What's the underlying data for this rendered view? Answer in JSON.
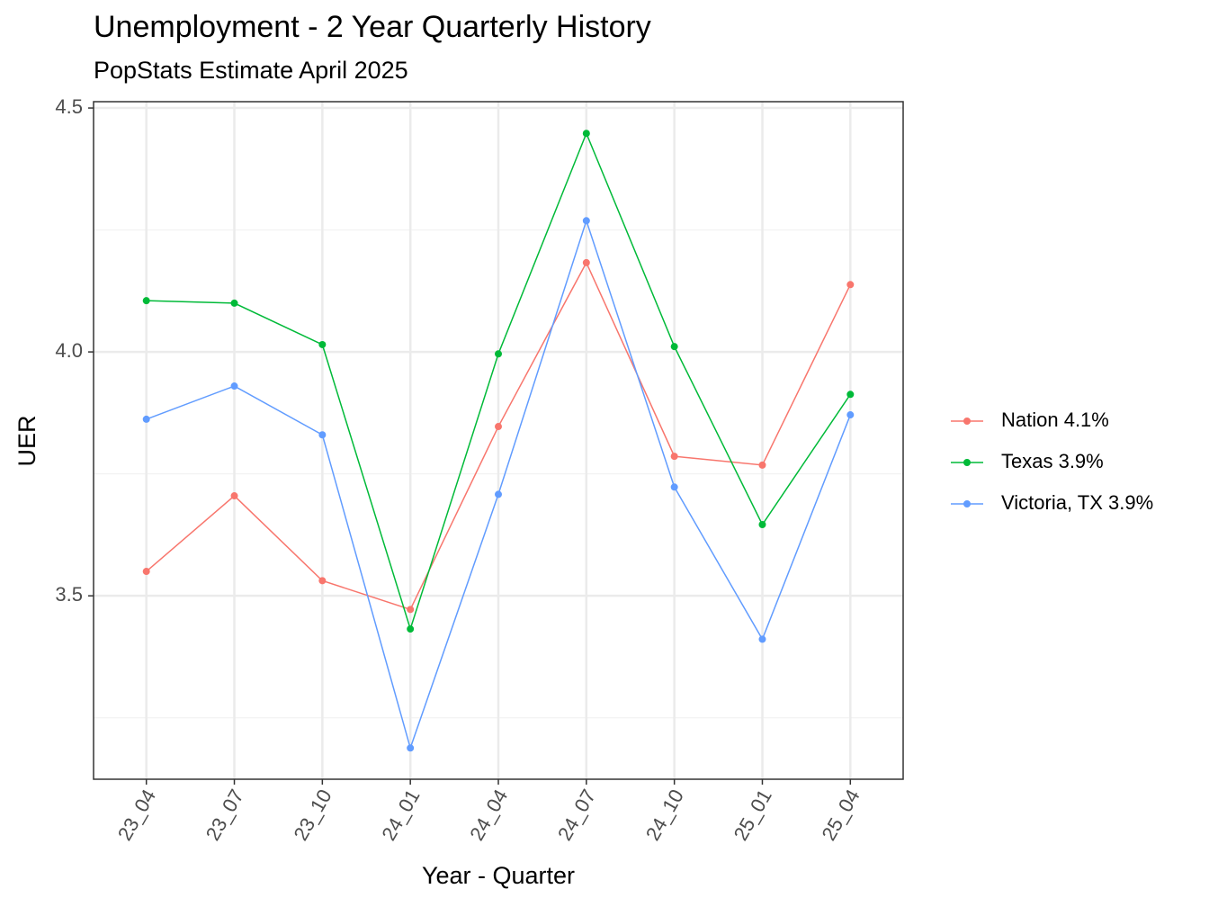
{
  "chart_data": {
    "type": "line",
    "title": "Unemployment - 2 Year Quarterly History",
    "subtitle": "PopStats Estimate April 2025",
    "x_label": "Year - Quarter",
    "y_label": "UER",
    "categories": [
      "23_04",
      "23_07",
      "23_10",
      "24_01",
      "24_04",
      "24_07",
      "24_10",
      "25_01",
      "25_04"
    ],
    "series": [
      {
        "name": "Nation 4.1%",
        "color": "#F8766D",
        "values": [
          3.55,
          3.705,
          3.531,
          3.472,
          3.847,
          4.183,
          3.786,
          3.768,
          4.138
        ]
      },
      {
        "name": "Texas 3.9%",
        "color": "#00BA38",
        "values": [
          4.105,
          4.1,
          4.015,
          3.432,
          3.996,
          4.448,
          4.011,
          3.646,
          3.913
        ]
      },
      {
        "name": "Victoria, TX 3.9%",
        "color": "#619CFF",
        "values": [
          3.862,
          3.93,
          3.83,
          3.188,
          3.708,
          4.269,
          3.723,
          3.411,
          3.871
        ]
      }
    ],
    "ylim": [
      3.124,
      4.513
    ],
    "yticks": [
      3.5,
      {
        "value": 4,
        "label": "4.0"
      },
      4.5
    ],
    "y_minor_ticks": [
      3.25,
      3.75,
      4.25
    ],
    "grid": true,
    "legend": "right"
  }
}
